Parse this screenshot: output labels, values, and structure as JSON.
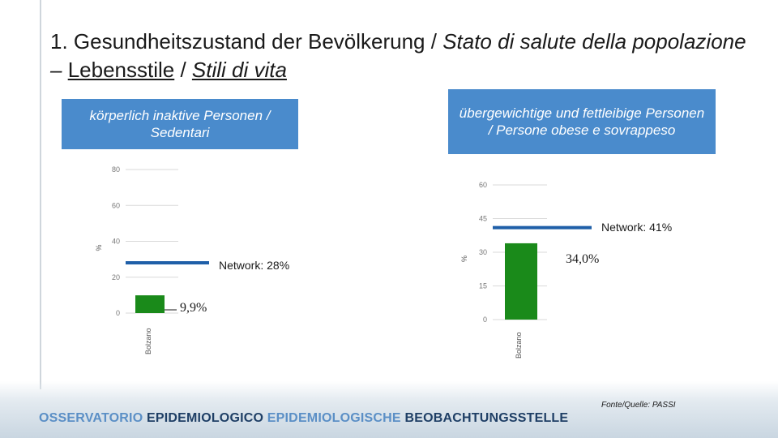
{
  "slide": {
    "title_part1": "1. Gesundheitszustand der Bevölkerung / ",
    "title_part2": "Stato di salute della popolazione",
    "title_part3": " – ",
    "title_part4": "Lebensstile",
    "title_part5": " / ",
    "title_part6": "Stili di vita",
    "box_left": "körperlich inaktive Personen / Sedentari",
    "box_right": "übergewichtige und fettleibige Personen / Persone obese e sovrappeso",
    "source": "Fonte/Quelle: PASSI",
    "footer_light_1": "OSSERVATORIO ",
    "footer_dark_1": "EPIDEMIOLOGICO ",
    "footer_light_2": "EPIDEMIOLOGISCHE ",
    "footer_dark_2": "BEOBACHTUNGSSTELLE"
  },
  "chart_data": [
    {
      "type": "bar",
      "ylabel": "%",
      "ylim": [
        0,
        80
      ],
      "yticks": [
        "0",
        "20",
        "40",
        "60",
        "80"
      ],
      "categories": [
        "Bolzano"
      ],
      "values": [
        9.9
      ],
      "value_label": "9,9%",
      "reference": {
        "label": "Network: 28%",
        "value": 28
      },
      "bar_color": "#1a8a1a",
      "reference_color": "#1f5fa8"
    },
    {
      "type": "bar",
      "ylabel": "%",
      "ylim": [
        0,
        60
      ],
      "yticks": [
        "0",
        "15",
        "30",
        "45",
        "60"
      ],
      "categories": [
        "Bolzano"
      ],
      "values": [
        34.0
      ],
      "value_label": "34,0%",
      "reference": {
        "label": "Network: 41%",
        "value": 41
      },
      "bar_color": "#1a8a1a",
      "reference_color": "#1f5fa8"
    }
  ]
}
